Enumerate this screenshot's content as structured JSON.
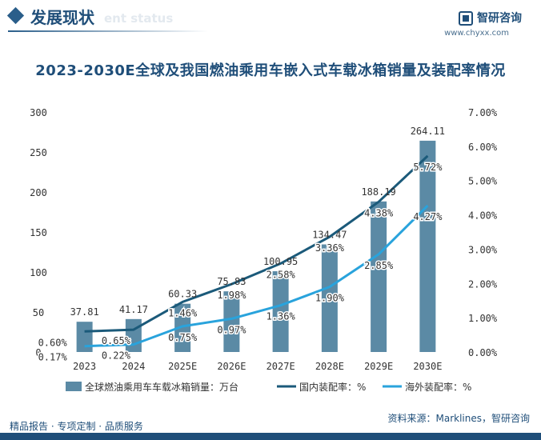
{
  "header": {
    "section_title": "发展现状",
    "section_subtitle": "ent status",
    "brand_name": "智研咨询",
    "brand_url": "www.chyxx.com"
  },
  "footer": {
    "left_text": "精品报告 · 专项定制 · 品质服务",
    "source_text": "资料来源：Marklines，智研咨询"
  },
  "colors": {
    "bar": "#5b8aa5",
    "domestic_line": "#1b5a7a",
    "overseas_line": "#29a3dc",
    "title": "#1f4e79"
  },
  "chart_data": {
    "type": "bar+line",
    "title": "2023-2030E全球及我国燃油乘用车嵌入式车载冰箱销量及装配率情况",
    "categories": [
      "2023",
      "2024",
      "2025E",
      "2026E",
      "2027E",
      "2028E",
      "2029E",
      "2030E"
    ],
    "series": [
      {
        "name": "全球燃油乘用车车载冰箱销量：万台",
        "type": "bar",
        "axis": "left",
        "values": [
          37.81,
          41.17,
          60.33,
          75.83,
          100.95,
          134.47,
          188.19,
          264.11
        ],
        "labels": [
          "37.81",
          "41.17",
          "60.33",
          "75.83",
          "100.95",
          "134.47",
          "188.19",
          "264.11"
        ]
      },
      {
        "name": "国内装配率：%",
        "type": "line",
        "axis": "right",
        "values": [
          0.6,
          0.65,
          1.46,
          1.98,
          2.58,
          3.36,
          4.38,
          5.72
        ],
        "labels": [
          "0.60%",
          "0.65%",
          "1.46%",
          "1.98%",
          "2.58%",
          "3.36%",
          "4.38%",
          "5.72%"
        ]
      },
      {
        "name": "海外装配率：%",
        "type": "line",
        "axis": "right",
        "values": [
          0.17,
          0.22,
          0.75,
          0.97,
          1.36,
          1.9,
          2.85,
          4.27
        ],
        "labels": [
          "0.17%",
          "0.22%",
          "0.75%",
          "0.97%",
          "1.36%",
          "1.90%",
          "2.85%",
          "4.27%"
        ]
      }
    ],
    "y_left": {
      "min": 0,
      "max": 300,
      "ticks": [
        "0",
        "50",
        "100",
        "150",
        "200",
        "250",
        "300"
      ]
    },
    "y_right": {
      "min": 0,
      "max": 7,
      "ticks": [
        "0.00%",
        "1.00%",
        "2.00%",
        "3.00%",
        "4.00%",
        "5.00%",
        "6.00%",
        "7.00%"
      ]
    },
    "grid": false,
    "legend_position": "bottom"
  }
}
